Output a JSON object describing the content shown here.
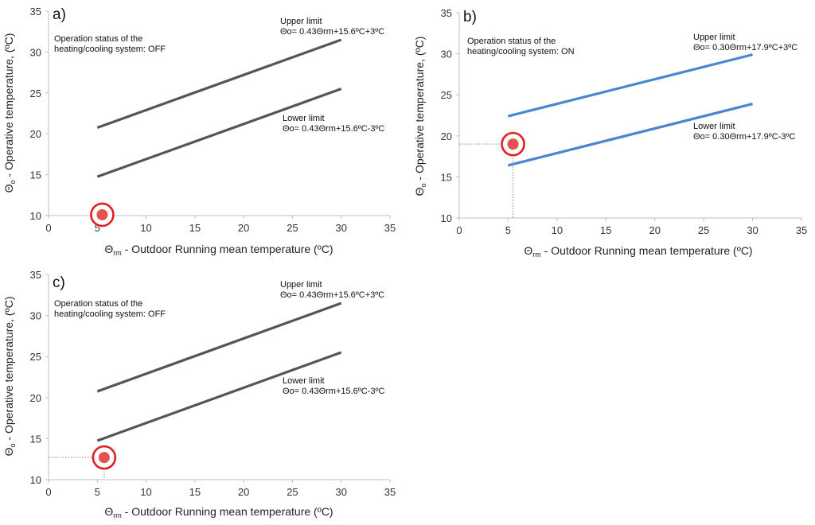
{
  "chart_data": [
    {
      "type": "line",
      "panel_label": "a)",
      "xlabel_symbol": "Θ",
      "xlabel_subscript": "rm",
      "xlabel_text": " - Outdoor Running mean temperature (ºC)",
      "ylabel_symbol": "Θ",
      "ylabel_subscript": "o",
      "ylabel_text": " - Operative temperature, (ºC)",
      "xlim": [
        0,
        35
      ],
      "ylim": [
        10,
        35
      ],
      "xticks": [
        0,
        5,
        10,
        15,
        20,
        25,
        30,
        35
      ],
      "yticks": [
        10,
        15,
        20,
        25,
        30,
        35
      ],
      "line_color": "#555555",
      "status_line1": "Operation status of the",
      "status_line2": "heating/cooling system: OFF",
      "series": [
        {
          "name": "Upper limit",
          "formula": "Θo= 0.43Θrm+15.6ºC+3ºC",
          "x": [
            5,
            30
          ],
          "y": [
            20.75,
            31.5
          ]
        },
        {
          "name": "Lower limit",
          "formula": "Θo= 0.43Θrm+15.6ºC-3ºC",
          "x": [
            5,
            30
          ],
          "y": [
            14.75,
            25.5
          ]
        }
      ],
      "point": {
        "x": 5.5,
        "y": 10.1,
        "color": "#e85050",
        "ring_color": "#e02020"
      },
      "guides": false
    },
    {
      "type": "line",
      "panel_label": "b)",
      "xlabel_symbol": "Θ",
      "xlabel_subscript": "rm",
      "xlabel_text": " - Outdoor Running mean temperature (ºC)",
      "ylabel_symbol": "Θ",
      "ylabel_subscript": "o",
      "ylabel_text": " - Operative temperature, (ºC)",
      "xlim": [
        0,
        35
      ],
      "ylim": [
        10,
        35
      ],
      "xticks": [
        0,
        5,
        10,
        15,
        20,
        25,
        30,
        35
      ],
      "yticks": [
        10,
        15,
        20,
        25,
        30,
        35
      ],
      "line_color": "#4a86d0",
      "status_line1": "Operation status of the",
      "status_line2": "heating/cooling system: ON",
      "series": [
        {
          "name": "Upper limit",
          "formula": "Θo= 0.30Θrm+17.9ºC+3ºC",
          "x": [
            5,
            30
          ],
          "y": [
            22.4,
            29.9
          ]
        },
        {
          "name": "Lower limit",
          "formula": "Θo= 0.30Θrm+17.9ºC-3ºC",
          "x": [
            5,
            30
          ],
          "y": [
            16.4,
            23.9
          ]
        }
      ],
      "point": {
        "x": 5.5,
        "y": 19.0,
        "color": "#e85050",
        "ring_color": "#e02020"
      },
      "guides": true
    },
    {
      "type": "line",
      "panel_label": "c)",
      "xlabel_symbol": "Θ",
      "xlabel_subscript": "rm",
      "xlabel_text": " - Outdoor Running mean temperature (ºC)",
      "ylabel_symbol": "Θ",
      "ylabel_subscript": "o",
      "ylabel_text": " - Operative temperature, (ºC)",
      "xlim": [
        0,
        35
      ],
      "ylim": [
        10,
        35
      ],
      "xticks": [
        0,
        5,
        10,
        15,
        20,
        25,
        30,
        35
      ],
      "yticks": [
        10,
        15,
        20,
        25,
        30,
        35
      ],
      "line_color": "#555555",
      "status_line1": "Operation status of the",
      "status_line2": "heating/cooling system: OFF",
      "series": [
        {
          "name": "Upper limit",
          "formula": "Θo= 0.43Θrm+15.6ºC+3ºC",
          "x": [
            5,
            30
          ],
          "y": [
            20.75,
            31.5
          ]
        },
        {
          "name": "Lower limit",
          "formula": "Θo= 0.43Θrm+15.6ºC-3ºC",
          "x": [
            5,
            30
          ],
          "y": [
            14.75,
            25.5
          ]
        }
      ],
      "point": {
        "x": 5.7,
        "y": 12.7,
        "color": "#e85050",
        "ring_color": "#e02020"
      },
      "guides": true
    }
  ]
}
